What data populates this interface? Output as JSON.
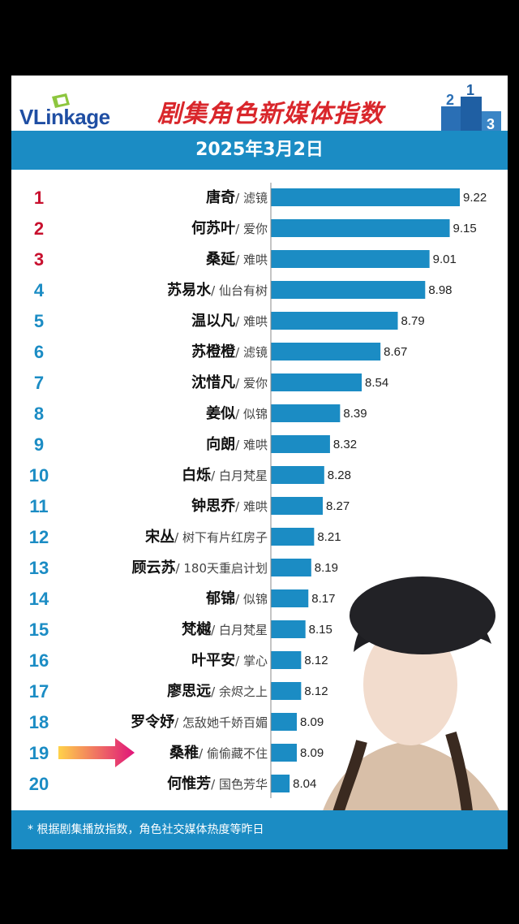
{
  "brand": {
    "logo_text": "VLinkage"
  },
  "header": {
    "title": "剧集角色新媒体指数",
    "date": "2025年3月2日"
  },
  "footer": {
    "note": "* 根据剧集播放指数，角色社交媒体热度等昨日"
  },
  "colors": {
    "bar": "#1b8cc4",
    "rank_red": "#c8102e",
    "rank_blue": "#1b8cc4",
    "title_red": "#d9262b"
  },
  "chart_data": {
    "type": "bar",
    "orientation": "horizontal",
    "title": "剧集角色新媒体指数",
    "date": "2025年3月2日",
    "ranks": [
      1,
      2,
      3,
      4,
      5,
      6,
      7,
      8,
      9,
      10,
      11,
      12,
      13,
      14,
      15,
      16,
      17,
      18,
      19,
      20
    ],
    "categories": [
      "唐奇",
      "何苏叶",
      "桑延",
      "苏易水",
      "温以凡",
      "苏橙橙",
      "沈惜凡",
      "姜似",
      "向朗",
      "白烁",
      "钟思乔",
      "宋丛",
      "顾云苏",
      "郁锦",
      "梵樾",
      "叶平安",
      "廖思远",
      "罗令妤",
      "桑稚",
      "何惟芳"
    ],
    "shows": [
      "滤镜",
      "爱你",
      "难哄",
      "仙台有树",
      "难哄",
      "滤镜",
      "爱你",
      "似锦",
      "难哄",
      "白月梵星",
      "难哄",
      "树下有片红房子",
      "180天重启计划",
      "似锦",
      "白月梵星",
      "掌心",
      "余烬之上",
      "怎敌她千娇百媚",
      "偷偷藏不住",
      "国色芳华"
    ],
    "values": [
      9.22,
      9.15,
      9.01,
      8.98,
      8.79,
      8.67,
      8.54,
      8.39,
      8.32,
      8.28,
      8.27,
      8.21,
      8.19,
      8.17,
      8.15,
      8.12,
      8.12,
      8.09,
      8.09,
      8.04
    ],
    "xlim": [
      7.91,
      9.22
    ],
    "highlight_rank": 19,
    "grid": false
  }
}
